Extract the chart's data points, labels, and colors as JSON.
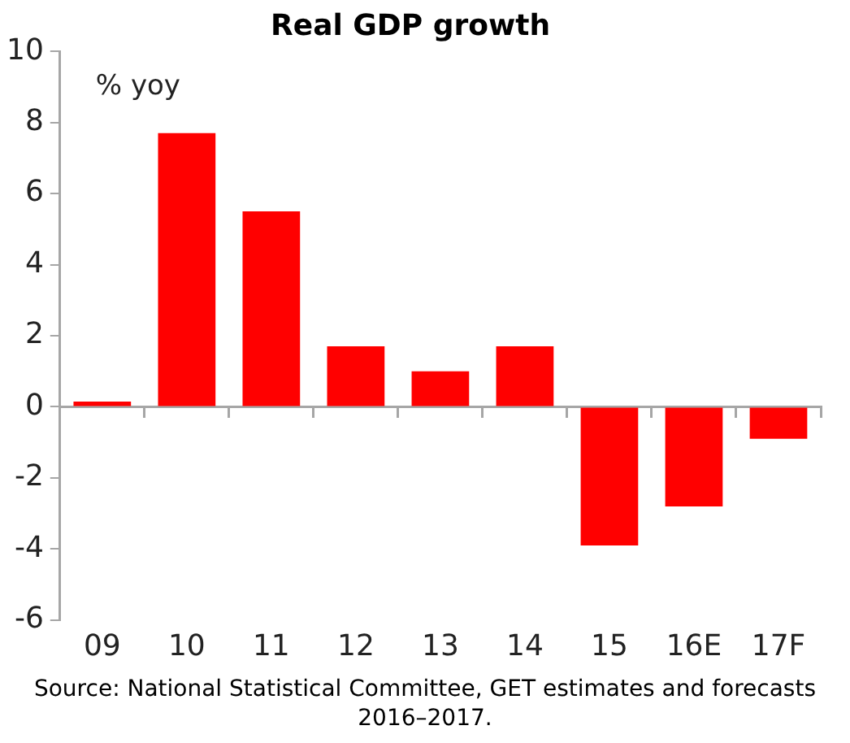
{
  "chart_data": {
    "type": "bar",
    "title": "Real GDP growth",
    "categories": [
      "09",
      "10",
      "11",
      "12",
      "13",
      "14",
      "15",
      "16E",
      "17F"
    ],
    "values": [
      0.15,
      7.7,
      5.5,
      1.7,
      1.0,
      1.7,
      -3.9,
      -2.8,
      -0.9
    ],
    "color": "#ff0000",
    "ylim": [
      -6,
      10
    ],
    "yticks": [
      -6,
      -4,
      -2,
      0,
      2,
      4,
      6,
      8,
      10
    ],
    "legend": false,
    "annotations": [
      "% yoy",
      "Source: National Statistical Committee, GET estimates and forecasts 2016–2017."
    ]
  }
}
